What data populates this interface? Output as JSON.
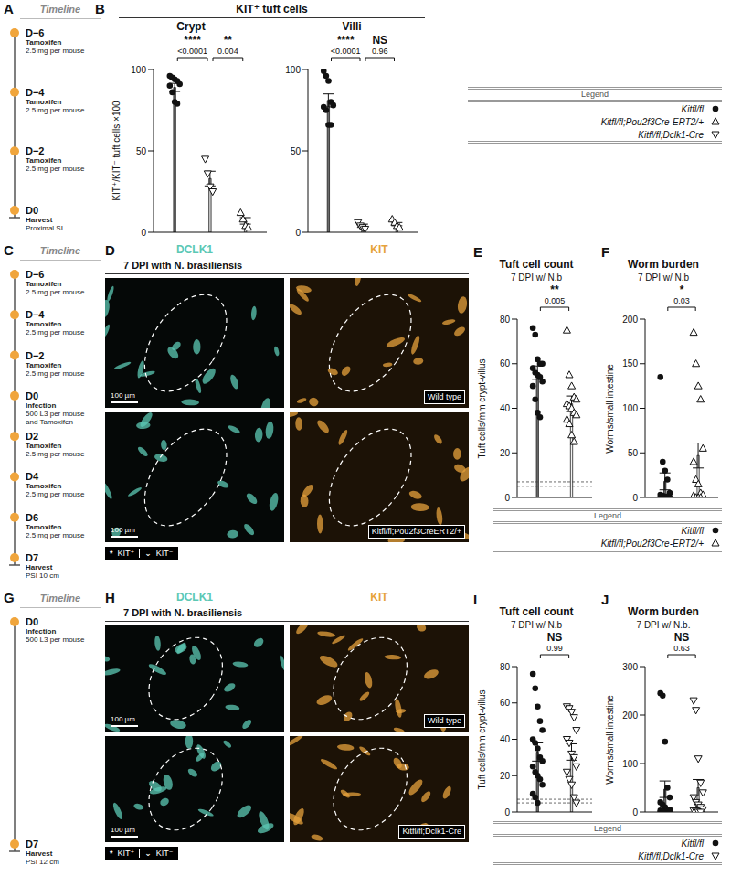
{
  "group": {
    "panel": "B",
    "title": "KIT⁺ tuft cells"
  },
  "timelines": [
    {
      "panel": "A",
      "header": "Timeline",
      "items": [
        {
          "day": "D−6",
          "lines": [
            "Tamoxifen",
            "2.5 mg per mouse"
          ]
        },
        {
          "day": "D−4",
          "lines": [
            "Tamoxifen",
            "2.5 mg per mouse"
          ]
        },
        {
          "day": "D−2",
          "lines": [
            "Tamoxifen",
            "2.5 mg per mouse"
          ]
        },
        {
          "day": "D0",
          "lines": [
            "Harvest",
            "Proximal SI"
          ]
        }
      ]
    },
    {
      "panel": "C",
      "header": "Timeline",
      "items": [
        {
          "day": "D−6",
          "lines": [
            "Tamoxifen",
            "2.5 mg per mouse"
          ]
        },
        {
          "day": "D−4",
          "lines": [
            "Tamoxifen",
            "2.5 mg per mouse"
          ]
        },
        {
          "day": "D−2",
          "lines": [
            "Tamoxifen",
            "2.5 mg per mouse"
          ]
        },
        {
          "day": "D0",
          "lines": [
            "Infection",
            "500 L3 per mouse",
            "and Tamoxifen"
          ]
        },
        {
          "day": "D2",
          "lines": [
            "Tamoxifen",
            "2.5 mg per mouse"
          ]
        },
        {
          "day": "D4",
          "lines": [
            "Tamoxifen",
            "2.5 mg per mouse"
          ]
        },
        {
          "day": "D6",
          "lines": [
            "Tamoxifen",
            "2.5 mg per mouse"
          ]
        },
        {
          "day": "D7",
          "lines": [
            "Harvest",
            "PSI 10 cm"
          ]
        }
      ]
    },
    {
      "panel": "G",
      "header": "Timeline",
      "items": [
        {
          "day": "D0",
          "lines": [
            "Infection",
            "500 L3 per mouse"
          ]
        },
        {
          "day": "D7",
          "lines": [
            "Harvest",
            "PSI 12 cm"
          ]
        }
      ]
    }
  ],
  "chart_data": [
    {
      "panel": "B",
      "type": "bar",
      "title": "Crypt",
      "ylabel": "KIT⁺/KIT⁻ tuft cells ×100",
      "ylim": [
        0,
        100
      ],
      "yticks": [
        0,
        50,
        100
      ],
      "tick_labels": "y",
      "series": [
        {
          "name": "Kitfl/fl",
          "color": "#6b6b6b",
          "marker": "circle",
          "mean": 89,
          "error": 2.5,
          "values": [
            96,
            95,
            94,
            93,
            91,
            90,
            86,
            80,
            79
          ]
        },
        {
          "name": "Kitfl/fl;Dclk1-Cre",
          "color": "#d4d4d4",
          "marker": "triangle-down",
          "mean": 33,
          "error": 4.5,
          "values": [
            45,
            36,
            28,
            25
          ]
        },
        {
          "name": "Kitfl/fl;Pou2f3Cre-ERT2/+",
          "color": "#efefef",
          "marker": "triangle-up",
          "mean": 7,
          "error": 2,
          "values": [
            12,
            8,
            4,
            3
          ]
        }
      ],
      "comparisons": [
        {
          "between": [
            0,
            1
          ],
          "stars": "****",
          "p": "<0.0001"
        },
        {
          "between": [
            1,
            2
          ],
          "stars": "**",
          "p": "0.004"
        }
      ]
    },
    {
      "panel": "B",
      "type": "bar",
      "title": "Villi",
      "ylim": [
        0,
        100
      ],
      "yticks": [
        0,
        50,
        100
      ],
      "tick_labels": "y",
      "series": [
        {
          "name": "Kitfl/fl",
          "color": "#6b6b6b",
          "marker": "circle",
          "mean": 81,
          "error": 4,
          "values": [
            99,
            96,
            93,
            80,
            78,
            77,
            75,
            66,
            66
          ]
        },
        {
          "name": "Kitfl/fl;Dclk1-Cre",
          "color": "#d4d4d4",
          "marker": "triangle-down",
          "mean": 4,
          "error": 1,
          "values": [
            6,
            4,
            3,
            2
          ]
        },
        {
          "name": "Kitfl/fl;Pou2f3Cre-ERT2/+",
          "color": "#efefef",
          "marker": "triangle-up",
          "mean": 5,
          "error": 1,
          "values": [
            8,
            6,
            4,
            3
          ]
        }
      ],
      "comparisons": [
        {
          "between": [
            0,
            1
          ],
          "stars": "****",
          "p": "<0.0001"
        },
        {
          "between": [
            1,
            2
          ],
          "stars": "NS",
          "p": "0.96"
        }
      ]
    },
    {
      "panel": "E",
      "type": "bar",
      "title": "Tuft cell count",
      "subtitle": "7 DPI w/ N.b",
      "ylabel": "Tuft cells/mm crypt-villus",
      "ylim": [
        0,
        80
      ],
      "yticks": [
        0,
        20,
        40,
        60,
        80
      ],
      "tick_labels": "y",
      "reference_lines": [
        5,
        7
      ],
      "series": [
        {
          "name": "Kitfl/fl",
          "color": "#6b6b6b",
          "marker": "circle",
          "mean": 56,
          "error": 3,
          "values": [
            76,
            73,
            62,
            60,
            60,
            58,
            56,
            55,
            54,
            52,
            50,
            44,
            38,
            36
          ]
        },
        {
          "name": "Kitfl/fl;Pou2f3Cre-ERT2/+",
          "color": "#f4f4f4",
          "marker": "triangle-up",
          "mean": 42,
          "error": 3.5,
          "values": [
            75,
            55,
            50,
            45,
            44,
            42,
            41,
            40,
            38,
            37,
            35,
            33,
            28,
            25
          ]
        }
      ],
      "comparisons": [
        {
          "between": [
            0,
            1
          ],
          "stars": "**",
          "p": "0.005"
        }
      ]
    },
    {
      "panel": "F",
      "type": "bar",
      "title": "Worm burden",
      "subtitle": "7 DPI w/ N.b",
      "ylabel": "Worms/small intestine",
      "ylim": [
        0,
        200
      ],
      "yticks": [
        0,
        50,
        100,
        150,
        200
      ],
      "tick_labels": "y",
      "series": [
        {
          "name": "Kitfl/fl",
          "color": "#6b6b6b",
          "marker": "circle",
          "mean": 18,
          "error": 9.5,
          "values": [
            135,
            40,
            30,
            20,
            5,
            3,
            2,
            1,
            1,
            0,
            0,
            0,
            0,
            0
          ]
        },
        {
          "name": "Kitfl/fl;Pou2f3Cre-ERT2/+",
          "color": "#f4f4f4",
          "marker": "triangle-up",
          "mean": 47,
          "error": 14,
          "values": [
            185,
            150,
            125,
            110,
            55,
            40,
            20,
            15,
            5,
            3,
            2,
            0,
            0,
            0
          ]
        }
      ],
      "comparisons": [
        {
          "between": [
            0,
            1
          ],
          "stars": "*",
          "p": "0.03"
        }
      ]
    },
    {
      "panel": "I",
      "type": "bar",
      "title": "Tuft cell count",
      "subtitle": "7 DPI w/ N.b",
      "ylabel": "Tuft cells/mm crypt-villus",
      "ylim": [
        0,
        80
      ],
      "yticks": [
        0,
        20,
        40,
        60,
        80
      ],
      "tick_labels": "y",
      "reference_lines": [
        5,
        7
      ],
      "series": [
        {
          "name": "Kitfl/fl",
          "color": "#6b6b6b",
          "marker": "circle",
          "mean": 33,
          "error": 5,
          "values": [
            76,
            68,
            58,
            50,
            45,
            40,
            38,
            35,
            30,
            28,
            25,
            22,
            20,
            18,
            15,
            10,
            8,
            5
          ]
        },
        {
          "name": "Kitfl/fl;Dclk1-Cre",
          "color": "#d4d4d4",
          "marker": "triangle-down",
          "mean": 33,
          "error": 4.5,
          "values": [
            58,
            57,
            55,
            52,
            45,
            40,
            38,
            32,
            30,
            25,
            22,
            18,
            15,
            8,
            5
          ]
        }
      ],
      "comparisons": [
        {
          "between": [
            0,
            1
          ],
          "stars": "NS",
          "p": "0.99"
        }
      ]
    },
    {
      "panel": "J",
      "type": "bar",
      "title": "Worm burden",
      "subtitle": "7 DPI w/ N.b.",
      "ylabel": "Worms/small intestine",
      "ylim": [
        0,
        300
      ],
      "yticks": [
        0,
        100,
        200,
        300
      ],
      "tick_labels": "y",
      "series": [
        {
          "name": "Kitfl/fl",
          "color": "#6b6b6b",
          "marker": "circle",
          "mean": 47,
          "error": 17,
          "values": [
            245,
            240,
            145,
            50,
            30,
            20,
            15,
            10,
            5,
            5,
            3,
            2,
            0,
            0,
            0,
            0,
            0
          ]
        },
        {
          "name": "Kitfl/fl;Dclk1-Cre",
          "color": "#d4d4d4",
          "marker": "triangle-down",
          "mean": 50,
          "error": 17,
          "values": [
            230,
            210,
            110,
            60,
            40,
            30,
            20,
            15,
            10,
            5,
            3,
            2,
            0,
            0
          ]
        }
      ],
      "comparisons": [
        {
          "between": [
            0,
            1
          ],
          "stars": "NS",
          "p": "0.63"
        }
      ]
    }
  ],
  "images": [
    {
      "panel": "D",
      "title": "7 DPI with N. brasiliensis",
      "channels": [
        "DCLK1",
        "KIT"
      ],
      "rows": [
        "Wild type",
        "Kitfl/fl;Pou2f3CreERT2/+"
      ],
      "scale_bar": "100 µm",
      "key": [
        {
          "symbol": "*",
          "label": "KIT⁺"
        },
        {
          "symbol": "⌄",
          "label": "KIT⁻"
        }
      ]
    },
    {
      "panel": "H",
      "title": "7 DPI with N. brasiliensis",
      "channels": [
        "DCLK1",
        "KIT"
      ],
      "rows": [
        "Wild type",
        "Kitfl/fl;Dclk1-Cre"
      ],
      "scale_bar": "100 µm",
      "key": [
        {
          "symbol": "*",
          "label": "KIT⁺"
        },
        {
          "symbol": "⌄",
          "label": "KIT⁻"
        }
      ]
    }
  ],
  "legends": [
    {
      "header": "Legend",
      "entries": [
        "Kitfl/fl",
        "Kitfl/fl;Pou2f3Cre-ERT2/+",
        "Kitfl/fl;Dclk1-Cre"
      ]
    },
    {
      "header": "Legend",
      "entries": [
        "Kitfl/fl",
        "Kitfl/fl;Pou2f3Cre-ERT2/+"
      ]
    },
    {
      "header": "Legend",
      "entries": [
        "Kitfl/fl",
        "Kitfl/fl;Dclk1-Cre"
      ]
    }
  ]
}
